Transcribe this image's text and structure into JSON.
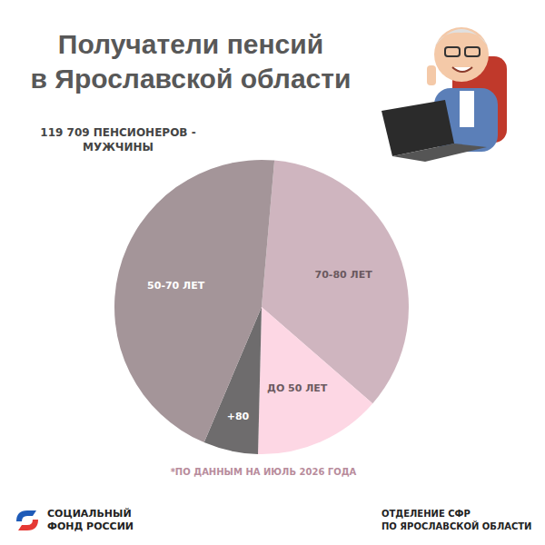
{
  "chart_data": {
    "type": "pie",
    "title": "Получатели пенсий\nв Ярославской области",
    "subtitle": "119 709 ПЕНСИОНЕРОВ -\nМУЖЧИНЫ",
    "categories": [
      "70-80 ЛЕТ",
      "ДО 50 ЛЕТ",
      "+80",
      "50-70 ЛЕТ"
    ],
    "values": [
      35,
      14,
      6,
      45
    ],
    "colors": [
      "#cfb5bf",
      "#fdd7e4",
      "#6e6c6d",
      "#a49599"
    ],
    "data_labels": false,
    "annotations": [
      "*ПО ДАННЫМ НА ИЮЛЬ 2026 ГОДА",
      "СОЦИАЛЬНЫЙ\nФОНД РОССИИ",
      "ОТДЕЛЕНИЕ СФР\nПО ЯРОСЛАВСКОЙ ОБЛАСТИ"
    ]
  }
}
